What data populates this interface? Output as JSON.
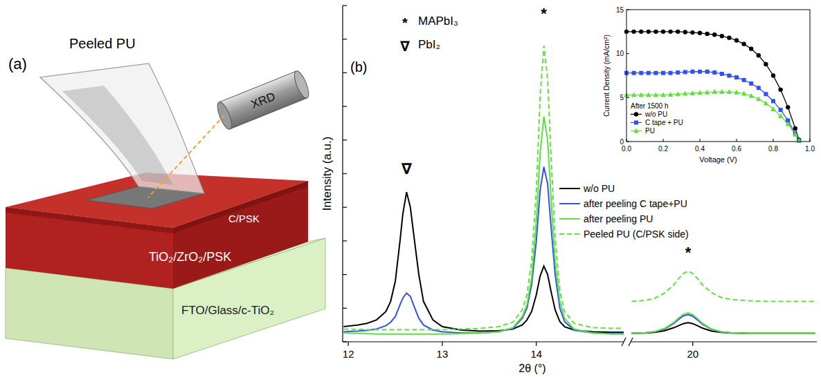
{
  "diagram": {
    "panel_label": "(a)",
    "film_label": "Peeled PU",
    "instrument": "XRD",
    "layers": [
      "C/PSK",
      "TiO₂/ZrO₂/PSK",
      "FTO/Glass/c-TiO₂"
    ]
  },
  "chart_data": [
    {
      "type": "line",
      "panel_label": "(b)",
      "x_label": "2θ (°)",
      "y_label": "Intensity (a.u.)",
      "xlim": [
        11.94,
        21.32
      ],
      "x_break": [
        14.93,
        19.34
      ],
      "xticks": [
        12,
        13,
        14,
        20
      ],
      "ylim": [
        0,
        100
      ],
      "yticks": [
        0,
        10,
        20,
        30,
        40,
        50,
        60,
        70,
        80,
        90,
        100
      ],
      "tick_labels": "x",
      "legend": "right",
      "key": [
        {
          "symbol": "*",
          "label": "MAPbI₃"
        },
        {
          "symbol": "∇",
          "label": "PbI₂"
        }
      ],
      "annotations": [
        {
          "text": "∇",
          "x": 12.62,
          "y": 50
        },
        {
          "text": "*",
          "x": 14.08,
          "y": 96
        },
        {
          "text": "*",
          "x": 19.95,
          "y": 25
        }
      ],
      "x": [
        11.95,
        12.1,
        12.2,
        12.3,
        12.4,
        12.45,
        12.5,
        12.55,
        12.58,
        12.62,
        12.66,
        12.7,
        12.75,
        12.8,
        12.9,
        13.0,
        13.2,
        13.4,
        13.6,
        13.75,
        13.85,
        13.9,
        13.95,
        14.0,
        14.04,
        14.08,
        14.12,
        14.16,
        14.2,
        14.25,
        14.3,
        14.4,
        14.6,
        14.8,
        14.93,
        19.35,
        19.5,
        19.6,
        19.7,
        19.8,
        19.85,
        19.9,
        19.95,
        20.0,
        20.05,
        20.1,
        20.2,
        20.3,
        20.4,
        20.6,
        20.8,
        21.0,
        21.3
      ],
      "series": [
        {
          "name": "w/o PU",
          "color": "#000000",
          "line_style": "solid",
          "values": [
            4.5,
            5,
            5.5,
            6.5,
            9,
            12,
            18,
            30,
            38,
            44.5,
            40,
            31,
            20,
            12,
            6.5,
            4.5,
            3.5,
            3.2,
            3.3,
            3.8,
            5,
            6.5,
            9,
            14,
            19.5,
            22.5,
            20,
            14.5,
            9.5,
            6,
            4.5,
            3.5,
            3,
            2.8,
            2.8,
            2.5,
            2.6,
            2.8,
            3.3,
            4.2,
            4.8,
            5.4,
            5.7,
            5.4,
            4.8,
            4.1,
            3.2,
            2.8,
            2.6,
            2.5,
            2.5,
            2.5,
            2.5
          ]
        },
        {
          "name": "after peeling C tape+PU",
          "color": "#3050f0",
          "line_style": "solid",
          "values": [
            3,
            3.2,
            3.4,
            3.8,
            4.8,
            5.8,
            7.5,
            11,
            13,
            14.5,
            13.5,
            10.5,
            7,
            5,
            3.5,
            3,
            2.6,
            2.6,
            3,
            4,
            7,
            10,
            17,
            30,
            45,
            52,
            47,
            33,
            20,
            10,
            6,
            3.5,
            2.6,
            2.4,
            2.4,
            2.5,
            2.7,
            3,
            3.8,
            5.5,
            6.7,
            7.7,
            8.1,
            7.6,
            6.5,
            5.3,
            3.7,
            3,
            2.7,
            2.5,
            2.5,
            2.5,
            2.5
          ]
        },
        {
          "name": "after peeling PU",
          "color": "#5fe040",
          "line_style": "solid",
          "values": [
            2.6,
            2.5,
            2.4,
            2.3,
            2.3,
            2.3,
            2.3,
            2.3,
            2.3,
            2.3,
            2.3,
            2.3,
            2.3,
            2.3,
            2.3,
            2.3,
            2.4,
            2.6,
            3,
            4.2,
            7.5,
            11,
            19,
            36,
            56,
            67,
            60,
            41,
            24,
            12,
            7,
            3.8,
            2.6,
            2.3,
            2.3,
            2.5,
            2.7,
            3.1,
            4,
            5.8,
            7.1,
            8.2,
            8.6,
            8.1,
            6.9,
            5.6,
            3.8,
            3,
            2.7,
            2.5,
            2.5,
            2.5,
            2.5
          ]
        },
        {
          "name": "Peeled PU (C/PSK side)",
          "color": "#5fe040",
          "line_style": "dashed",
          "values": [
            3.8,
            3.7,
            3.6,
            3.6,
            3.6,
            3.6,
            3.6,
            3.6,
            3.6,
            3.6,
            3.6,
            3.6,
            3.6,
            3.6,
            3.6,
            3.6,
            3.8,
            4,
            4.5,
            5.8,
            9.5,
            14,
            24,
            45,
            73,
            88,
            78,
            53,
            31,
            15,
            9,
            5.5,
            4.2,
            4,
            4,
            12,
            12.3,
            13,
            14.5,
            17,
            18.8,
            20.3,
            21,
            20.3,
            18.8,
            17,
            14.6,
            13.2,
            12.6,
            12.2,
            12,
            12,
            12
          ]
        }
      ]
    },
    {
      "type": "line",
      "legend_title": "After 1500 h",
      "x_label": "Voltage (V)",
      "y_label": "Current Density (mA/cm²)",
      "xlim": [
        0,
        1
      ],
      "xticks": [
        {
          "value": 0,
          "label": "0.0"
        },
        0.2,
        0.4,
        0.6,
        0.8,
        {
          "value": 1,
          "label": "1.0"
        }
      ],
      "ylim": [
        0,
        15
      ],
      "yticks": [
        0,
        5,
        10,
        15
      ],
      "legend": "lower left",
      "x": [
        0,
        0.04,
        0.08,
        0.12,
        0.16,
        0.2,
        0.24,
        0.28,
        0.32,
        0.36,
        0.4,
        0.44,
        0.48,
        0.52,
        0.56,
        0.6,
        0.64,
        0.68,
        0.72,
        0.76,
        0.8,
        0.84,
        0.88,
        0.92,
        0.94
      ],
      "series": [
        {
          "name": "w/o PU",
          "color": "#000000",
          "marker": "circle",
          "values": [
            12.5,
            12.5,
            12.5,
            12.5,
            12.5,
            12.5,
            12.5,
            12.5,
            12.45,
            12.4,
            12.35,
            12.25,
            12.15,
            12.0,
            11.8,
            11.5,
            11.1,
            10.55,
            9.8,
            8.8,
            7.5,
            5.9,
            3.9,
            1.5,
            0.2
          ]
        },
        {
          "name": "C tape + PU",
          "color": "#3050f0",
          "marker": "square",
          "values": [
            7.8,
            7.8,
            7.8,
            7.8,
            7.8,
            7.8,
            7.8,
            7.85,
            7.9,
            7.95,
            7.95,
            7.95,
            7.85,
            7.7,
            7.5,
            7.3,
            7.0,
            6.6,
            6.1,
            5.4,
            4.6,
            3.6,
            2.4,
            0.9,
            0.1
          ]
        },
        {
          "name": "PU",
          "color": "#5fe040",
          "marker": "triangle",
          "values": [
            5.3,
            5.3,
            5.3,
            5.3,
            5.3,
            5.3,
            5.35,
            5.4,
            5.45,
            5.5,
            5.55,
            5.6,
            5.65,
            5.65,
            5.65,
            5.6,
            5.45,
            5.2,
            4.85,
            4.35,
            3.7,
            2.9,
            2.0,
            0.8,
            0.1
          ]
        }
      ]
    }
  ]
}
